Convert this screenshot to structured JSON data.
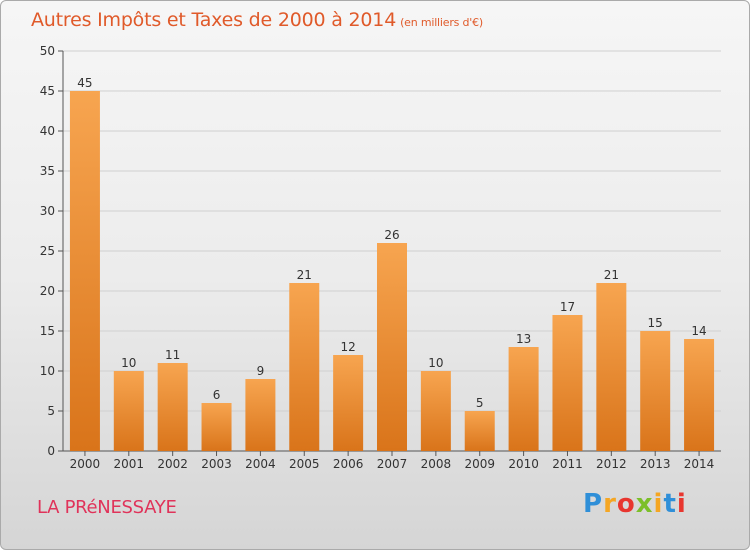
{
  "header": {
    "title": "Autres Impôts et Taxes de 2000 à 2014",
    "unit_note": "(en milliers d'€)"
  },
  "footer": {
    "commune": "LA PRéNESSAYE",
    "logo_text": "Proxiti"
  },
  "colors": {
    "bar_light": "#f7a550",
    "bar_dark": "#d9741a",
    "title": "#e05a2a",
    "commune": "#e0335a"
  },
  "chart_data": {
    "type": "bar",
    "categories": [
      "2000",
      "2001",
      "2002",
      "2003",
      "2004",
      "2005",
      "2006",
      "2007",
      "2008",
      "2009",
      "2010",
      "2011",
      "2012",
      "2013",
      "2014"
    ],
    "values": [
      45,
      10,
      11,
      6,
      9,
      21,
      12,
      26,
      10,
      5,
      13,
      17,
      21,
      15,
      14
    ],
    "title": "Autres Impôts et Taxes de 2000 à 2014",
    "subtitle": "(en milliers d'€)",
    "ylim": [
      0,
      50
    ],
    "yticks": [
      0,
      5,
      10,
      15,
      20,
      25,
      30,
      35,
      40,
      45,
      50
    ],
    "grid": true,
    "data_labels": true
  }
}
